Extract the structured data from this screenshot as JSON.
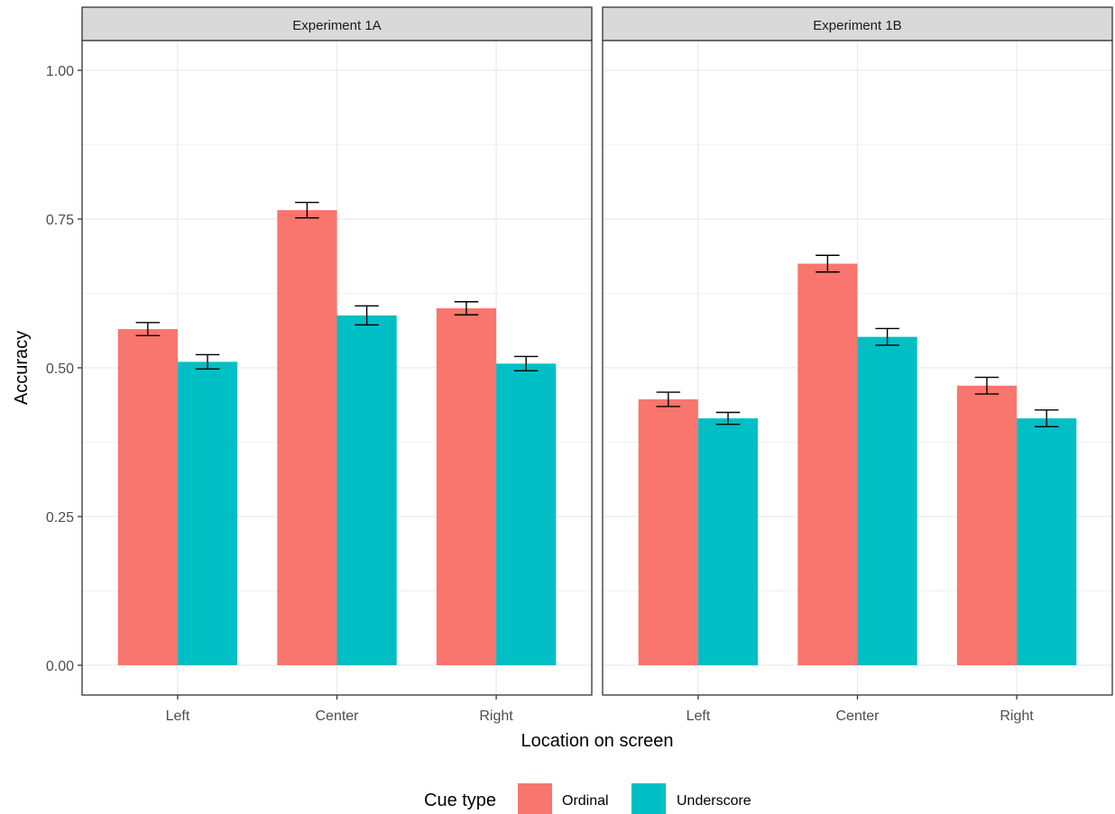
{
  "chart_data": {
    "type": "bar",
    "xlabel": "Location on screen",
    "ylabel": "Accuracy",
    "ylim": [
      -0.05,
      1.05
    ],
    "yticks": [
      "0.00",
      "0.25",
      "0.50",
      "0.75",
      "1.00"
    ],
    "ytick_values": [
      0,
      0.25,
      0.5,
      0.75,
      1.0
    ],
    "grid": true,
    "categories": [
      "Left",
      "Center",
      "Right"
    ],
    "legend": {
      "title": "Cue type",
      "position": "bottom",
      "entries": [
        "Ordinal",
        "Underscore"
      ]
    },
    "colors": {
      "Ordinal": "#F8766D",
      "Underscore": "#00BFC4"
    },
    "panels": [
      {
        "title": "Experiment 1A",
        "series": [
          {
            "name": "Ordinal",
            "values": [
              0.565,
              0.765,
              0.6
            ],
            "error": [
              0.011,
              0.013,
              0.011
            ]
          },
          {
            "name": "Underscore",
            "values": [
              0.51,
              0.588,
              0.507
            ],
            "error": [
              0.012,
              0.016,
              0.012
            ]
          }
        ]
      },
      {
        "title": "Experiment 1B",
        "series": [
          {
            "name": "Ordinal",
            "values": [
              0.447,
              0.675,
              0.47
            ],
            "error": [
              0.012,
              0.014,
              0.014
            ]
          },
          {
            "name": "Underscore",
            "values": [
              0.415,
              0.552,
              0.415
            ],
            "error": [
              0.01,
              0.014,
              0.014
            ]
          }
        ]
      }
    ]
  }
}
